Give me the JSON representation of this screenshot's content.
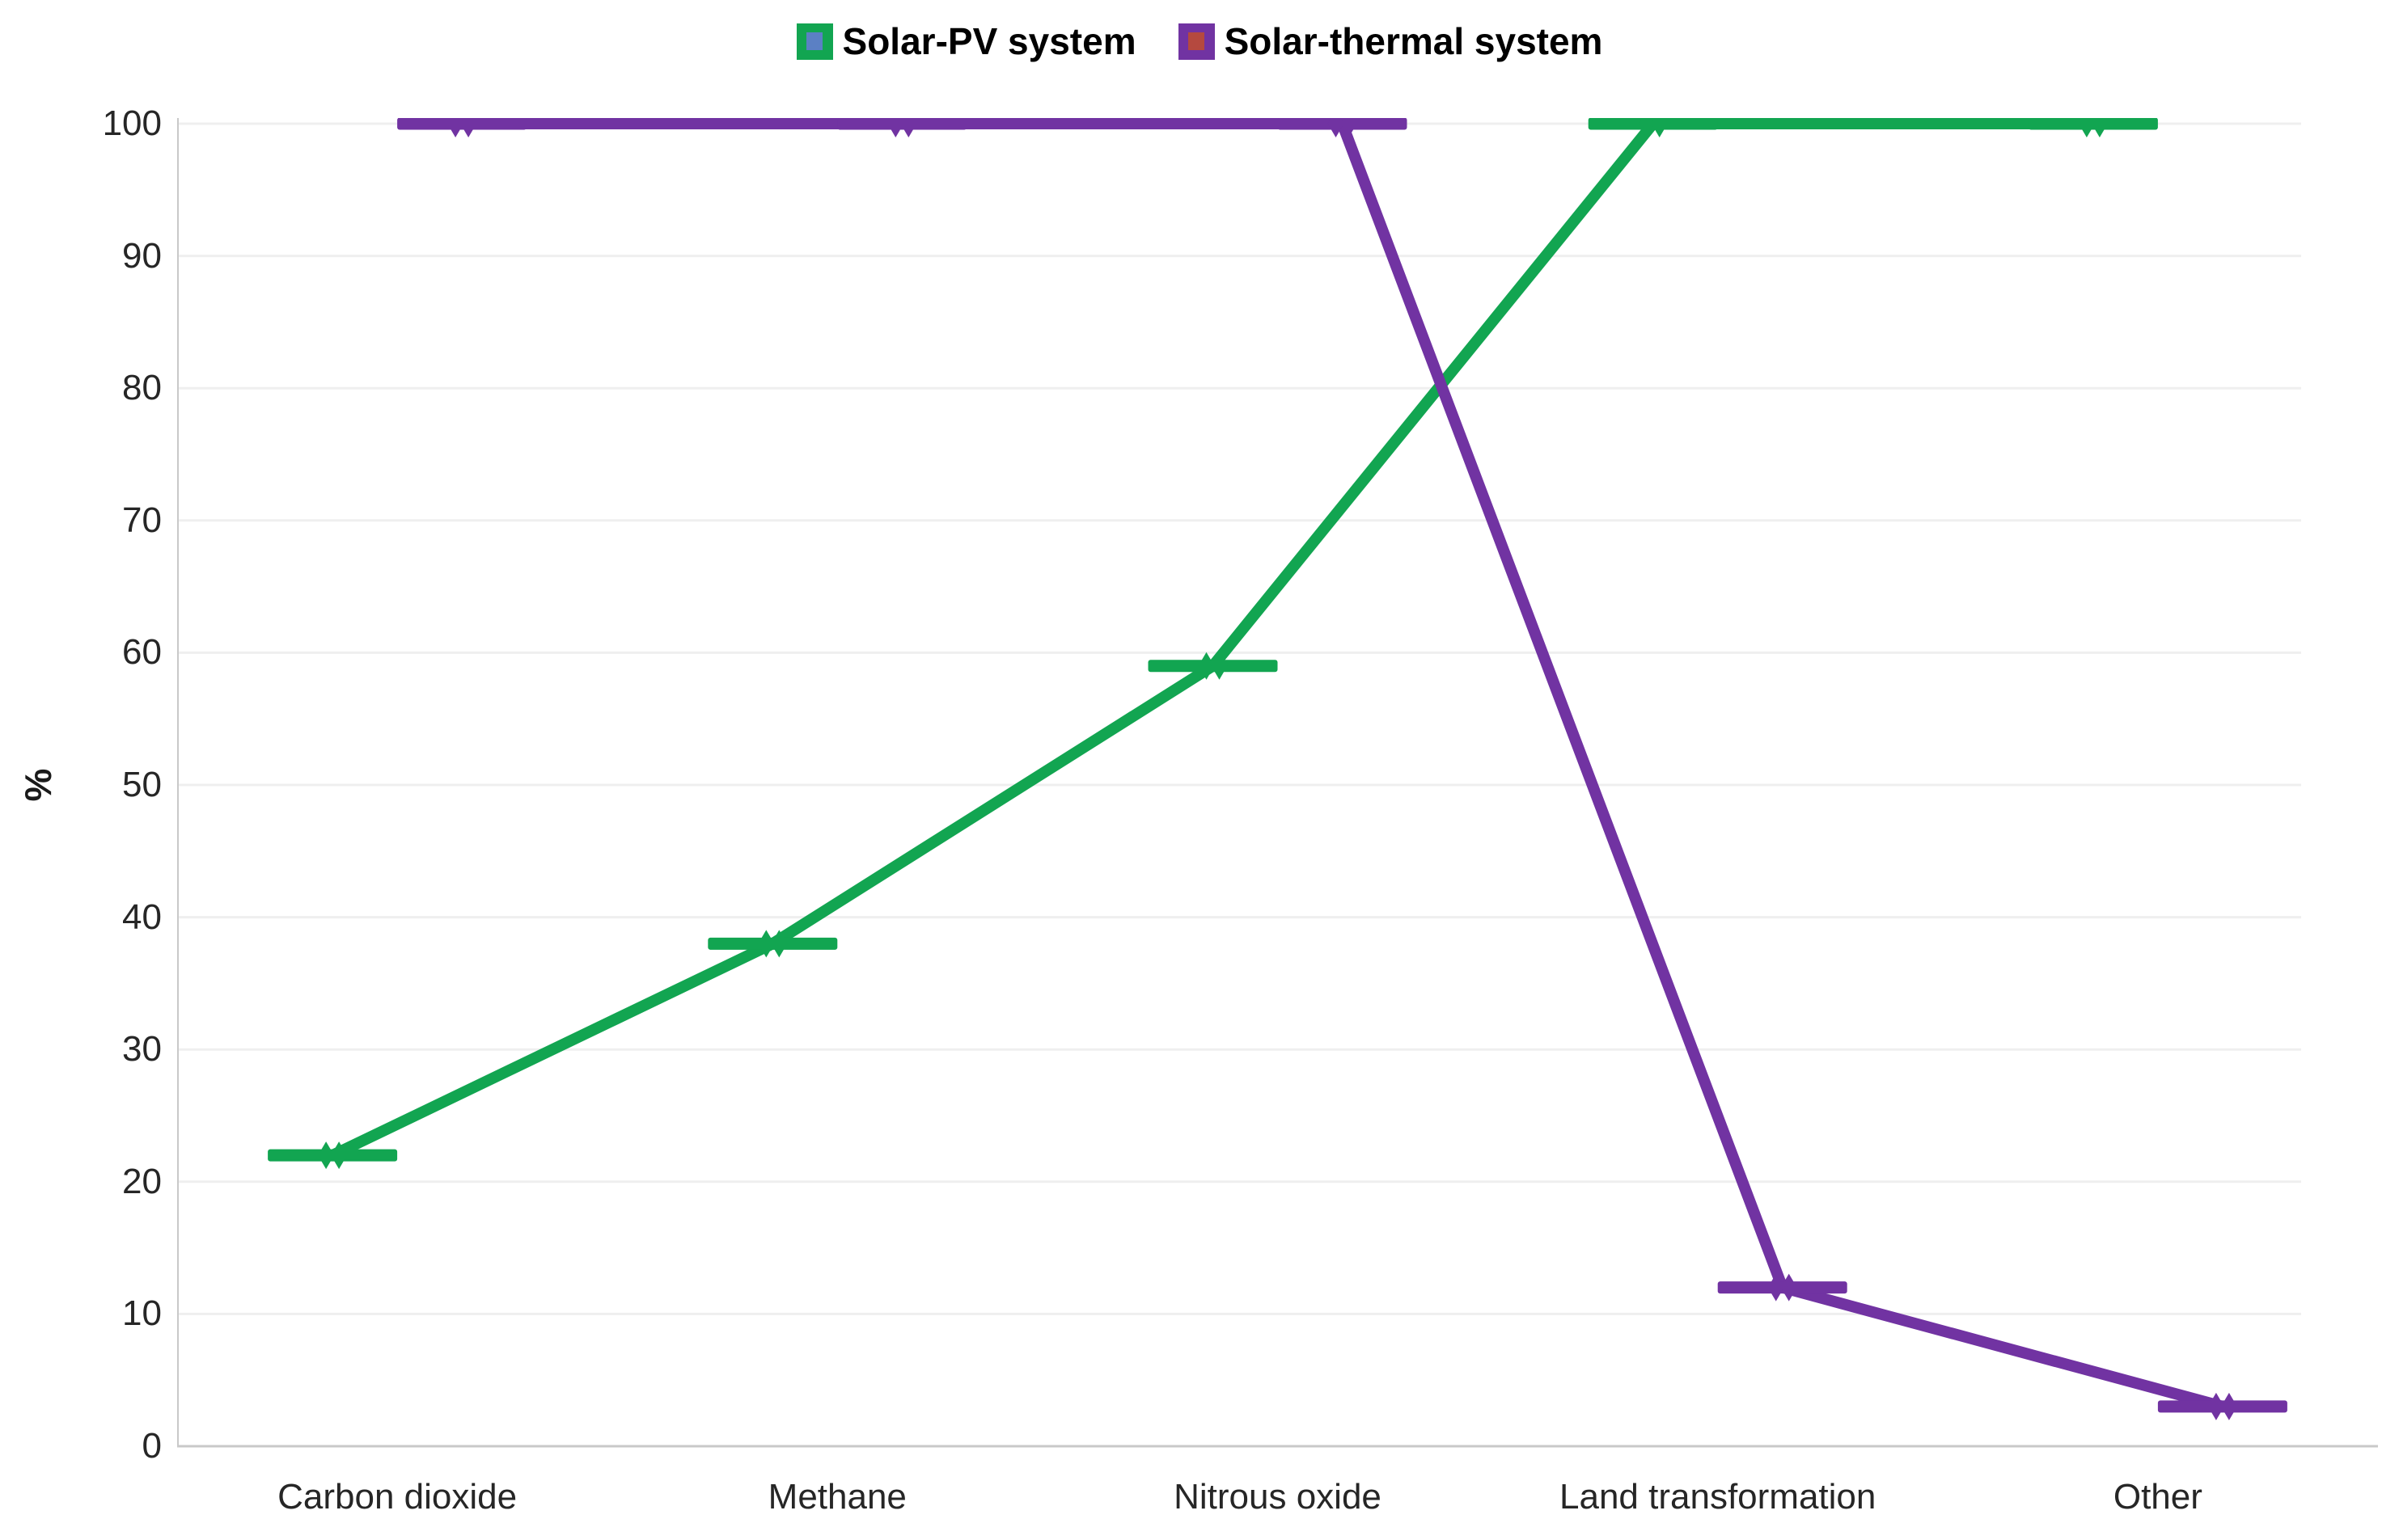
{
  "chart_data": {
    "type": "line",
    "title": "",
    "categories": [
      "Carbon dioxide",
      "Methane",
      "Nitrous oxide",
      "Land transformation",
      "Other"
    ],
    "series": [
      {
        "name": "Solar-PV system",
        "values": [
          22,
          38,
          59,
          100,
          100
        ],
        "color": "#12a551",
        "legend_inner_marker_color": "#5b80c4"
      },
      {
        "name": "Solar-thermal system",
        "values": [
          100,
          100,
          100,
          12,
          3
        ],
        "color": "#7133a2",
        "legend_inner_marker_color": "#b5493f"
      }
    ],
    "xlabel": "",
    "ylabel": "%",
    "ylim": [
      0,
      100
    ],
    "yticks": [
      0,
      10,
      20,
      30,
      40,
      50,
      60,
      70,
      80,
      90,
      100
    ],
    "grid": true,
    "legend_position": "top-center",
    "marker_style": "horizontal-dash-with-double-diamond",
    "series_dodge": "series offset left/right of each category center"
  },
  "colors": {
    "background": "#ffffff",
    "gridline": "#efefef",
    "axis_line": "#c9c9c9",
    "tick_text": "#262626",
    "legend_text": "#000000"
  }
}
